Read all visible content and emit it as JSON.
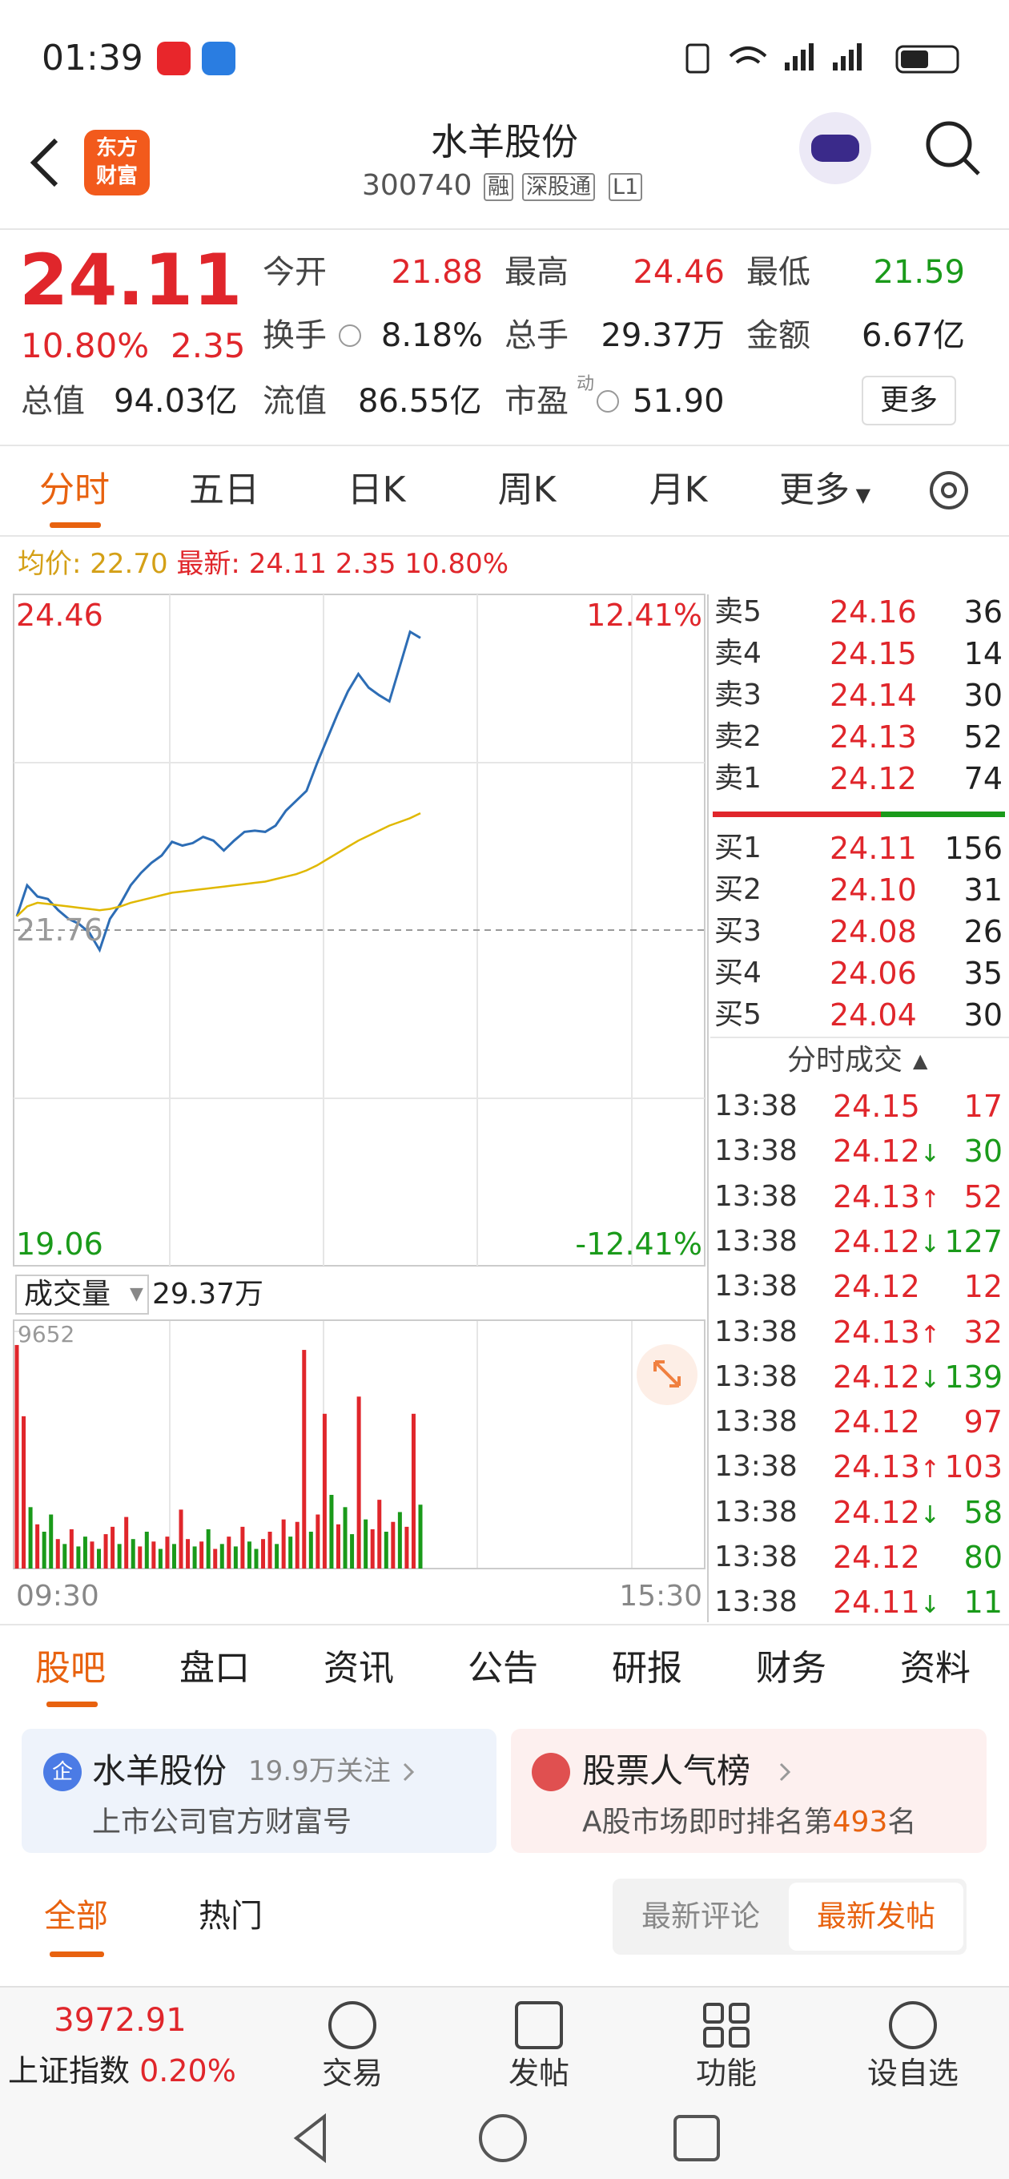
{
  "status_bar": {
    "time": "01:39"
  },
  "header": {
    "logo": [
      "东方",
      "财富"
    ],
    "title": "水羊股份",
    "code": "300740",
    "tags": [
      "融",
      "深股通",
      "L1"
    ]
  },
  "quote": {
    "price": "24.11",
    "change_pct": "10.80%",
    "change": "2.35",
    "fields": [
      {
        "label": "今开",
        "value": "21.88",
        "color": "#e0262b"
      },
      {
        "label": "最高",
        "value": "24.46",
        "color": "#e0262b"
      },
      {
        "label": "最低",
        "value": "21.59",
        "color": "#1a9a1a"
      },
      {
        "label": "换手",
        "value": "8.18%",
        "color": "#222"
      },
      {
        "label": "总手",
        "value": "29.37万",
        "color": "#222"
      },
      {
        "label": "金额",
        "value": "6.67亿",
        "color": "#222"
      },
      {
        "label": "总值",
        "value": "94.03亿",
        "color": "#222"
      },
      {
        "label": "流值",
        "value": "86.55亿",
        "color": "#222"
      },
      {
        "label": "市盈",
        "value": "51.90",
        "color": "#222"
      }
    ],
    "pe_note": "动",
    "more": "更多"
  },
  "tabs": {
    "items": [
      "分时",
      "五日",
      "日K",
      "周K",
      "月K",
      "更多"
    ],
    "active": 0
  },
  "intraday": {
    "avg_label": "均价:",
    "avg": "22.70",
    "latest_label": "最新:",
    "latest": "24.11 2.35 10.80%"
  },
  "chart": {
    "type": "line",
    "ylim": [
      19.06,
      24.46
    ],
    "yticks": [
      24.46,
      21.76,
      19.06
    ],
    "pct_labels": [
      "12.41%",
      "-12.41%"
    ],
    "series": [
      {
        "color": "#2d6db5",
        "values": [
          21.87,
          22.12,
          22.03,
          22.01,
          21.92,
          21.85,
          21.81,
          21.74,
          21.6,
          21.85,
          21.97,
          22.12,
          22.22,
          22.3,
          22.36,
          22.47,
          22.44,
          22.46,
          22.51,
          22.48,
          22.4,
          22.48,
          22.55,
          22.56,
          22.55,
          22.6,
          22.72,
          22.8,
          22.88,
          23.1,
          23.3,
          23.5,
          23.68,
          23.82,
          23.71,
          23.65,
          23.6,
          23.88,
          24.16,
          24.11
        ]
      },
      {
        "color": "#e0b800",
        "values": [
          21.87,
          21.95,
          21.98,
          21.97,
          21.96,
          21.95,
          21.94,
          21.93,
          21.92,
          21.93,
          21.95,
          21.98,
          22.0,
          22.02,
          22.04,
          22.06,
          22.07,
          22.08,
          22.09,
          22.1,
          22.11,
          22.12,
          22.13,
          22.14,
          22.15,
          22.17,
          22.19,
          22.21,
          22.24,
          22.28,
          22.33,
          22.38,
          22.43,
          22.48,
          22.52,
          22.56,
          22.6,
          22.63,
          22.66,
          22.7
        ]
      }
    ]
  },
  "volume": {
    "type": "bar",
    "label": "成交量",
    "total": "29.37万",
    "ylim": [
      0,
      9652
    ],
    "yticks": [
      9652
    ],
    "values": [
      9100,
      6200,
      2500,
      1800,
      1500,
      2200,
      1200,
      1000,
      1600,
      900,
      1300,
      1100,
      800,
      1400,
      1700,
      1000,
      2100,
      1200,
      900,
      1500,
      1100,
      800,
      1300,
      1000,
      2400,
      1200,
      900,
      1100,
      1600,
      800,
      1000,
      1300,
      900,
      1700,
      1100,
      800,
      1200,
      1500,
      1000,
      2000,
      1300,
      1900,
      8900,
      1500,
      2200,
      6300,
      3000,
      1800,
      2500,
      1400,
      7000,
      2000,
      1600,
      2800,
      1500,
      1900,
      2300,
      1700,
      6300,
      2600
    ],
    "colors": [
      "#e0262b",
      "#e0262b",
      "#1a9a1a",
      "#e0262b",
      "#1a9a1a",
      "#1a9a1a",
      "#e0262b",
      "#1a9a1a",
      "#e0262b",
      "#1a9a1a",
      "#1a9a1a",
      "#e0262b",
      "#1a9a1a",
      "#e0262b",
      "#e0262b",
      "#1a9a1a",
      "#e0262b",
      "#1a9a1a",
      "#e0262b",
      "#1a9a1a",
      "#e0262b",
      "#1a9a1a",
      "#e0262b",
      "#1a9a1a",
      "#e0262b",
      "#e0262b",
      "#1a9a1a",
      "#e0262b",
      "#1a9a1a",
      "#e0262b",
      "#1a9a1a",
      "#e0262b",
      "#1a9a1a",
      "#e0262b",
      "#1a9a1a",
      "#1a9a1a",
      "#e0262b",
      "#e0262b",
      "#1a9a1a",
      "#e0262b",
      "#1a9a1a",
      "#e0262b",
      "#e0262b",
      "#1a9a1a",
      "#e0262b",
      "#e0262b",
      "#1a9a1a",
      "#e0262b",
      "#1a9a1a",
      "#1a9a1a",
      "#e0262b",
      "#1a9a1a",
      "#e0262b",
      "#e0262b",
      "#1a9a1a",
      "#e0262b",
      "#1a9a1a",
      "#e0262b",
      "#e0262b",
      "#1a9a1a"
    ]
  },
  "times": [
    "09:30",
    "15:30"
  ],
  "order_book": {
    "asks": [
      {
        "label": "卖5",
        "price": "24.16",
        "volume": "36"
      },
      {
        "label": "卖4",
        "price": "24.15",
        "volume": "14"
      },
      {
        "label": "卖3",
        "price": "24.14",
        "volume": "30"
      },
      {
        "label": "卖2",
        "price": "24.13",
        "volume": "52"
      },
      {
        "label": "卖1",
        "price": "24.12",
        "volume": "74"
      }
    ],
    "bids": [
      {
        "label": "买1",
        "price": "24.11",
        "volume": "156"
      },
      {
        "label": "买2",
        "price": "24.10",
        "volume": "31"
      },
      {
        "label": "买3",
        "price": "24.08",
        "volume": "26"
      },
      {
        "label": "买4",
        "price": "24.06",
        "volume": "35"
      },
      {
        "label": "买5",
        "price": "24.04",
        "volume": "30"
      }
    ]
  },
  "trades": {
    "title": "分时成交",
    "rows": [
      {
        "time": "13:38",
        "price": "24.15",
        "volume": "17",
        "color": "#e0262b"
      },
      {
        "time": "13:38",
        "price": "24.12",
        "arrow": "↓",
        "volume": "30",
        "color": "#1a9a1a"
      },
      {
        "time": "13:38",
        "price": "24.13",
        "arrow": "↑",
        "volume": "52",
        "color": "#e0262b"
      },
      {
        "time": "13:38",
        "price": "24.12",
        "arrow": "↓",
        "volume": "127",
        "color": "#1a9a1a"
      },
      {
        "time": "13:38",
        "price": "24.12",
        "volume": "12",
        "color": "#e0262b"
      },
      {
        "time": "13:38",
        "price": "24.13",
        "arrow": "↑",
        "volume": "32",
        "color": "#e0262b"
      },
      {
        "time": "13:38",
        "price": "24.12",
        "arrow": "↓",
        "volume": "139",
        "color": "#1a9a1a"
      },
      {
        "time": "13:38",
        "price": "24.12",
        "volume": "97",
        "color": "#e0262b"
      },
      {
        "time": "13:38",
        "price": "24.13",
        "arrow": "↑",
        "volume": "103",
        "color": "#e0262b"
      },
      {
        "time": "13:38",
        "price": "24.12",
        "arrow": "↓",
        "volume": "58",
        "color": "#1a9a1a"
      },
      {
        "time": "13:38",
        "price": "24.12",
        "volume": "80",
        "color": "#1a9a1a"
      },
      {
        "time": "13:38",
        "price": "24.11",
        "arrow": "↓",
        "volume": "11",
        "color": "#1a9a1a"
      }
    ]
  },
  "section_tabs": {
    "items": [
      "股吧",
      "盘口",
      "资讯",
      "公告",
      "研报",
      "财务",
      "资料"
    ],
    "active": 0
  },
  "cards": [
    {
      "icon": "企",
      "title": "水羊股份",
      "meta": "19.9万关注",
      "sub": "上市公司官方财富号"
    },
    {
      "title": "股票人气榜",
      "sub_prefix": "A股市场即时排名第",
      "rank": "493",
      "sub_suffix": "名"
    }
  ],
  "filters": {
    "items": [
      "全部",
      "热门"
    ],
    "sort": [
      "最新评论",
      "最新发帖"
    ]
  },
  "bottom_bar": {
    "index_value": "3972.91",
    "index_name": "上证指数",
    "index_change": "0.20%",
    "actions": [
      "交易",
      "发帖",
      "功能",
      "设自选"
    ]
  }
}
